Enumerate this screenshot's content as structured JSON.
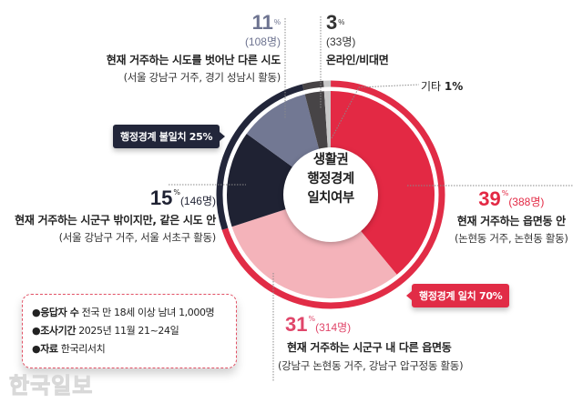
{
  "chart_data": {
    "type": "pie",
    "subtype": "donut",
    "title": "생활권 행정경계 일치여부",
    "center_label_lines": [
      "생활권",
      "행정경계",
      "일치여부"
    ],
    "categories": [
      "현재 거주하는 읍면동 안",
      "현재 거주하는 시군구 내 다른 읍면동",
      "현재 거주하는 시군구 밖이지만, 같은 시도 안",
      "현재 거주하는 시도를 벗어난 다른 시도",
      "온라인/비대면",
      "기타"
    ],
    "values": [
      39,
      31,
      15,
      11,
      3,
      1
    ],
    "counts": [
      388,
      314,
      146,
      108,
      33,
      null
    ],
    "colors": [
      "#e32944",
      "#f4b3ba",
      "#1f2233",
      "#727893",
      "#474446",
      "#c8c8c8"
    ],
    "groups": [
      {
        "name": "행정경계 일치",
        "value": 70,
        "members": [
          0,
          1
        ],
        "color": "#e12c46"
      },
      {
        "name": "행정경계 불일치",
        "value": 25,
        "members": [
          2,
          3
        ],
        "color": "#22263a"
      }
    ],
    "unit": "%"
  },
  "labels": {
    "s39": {
      "pct": "39",
      "unit": "%",
      "count": "(388명)",
      "title": "현재 거주하는 읍면동 안",
      "sub": "(논현동 거주, 논현동 활동)"
    },
    "s31": {
      "pct": "31",
      "unit": "%",
      "count": "(314명)",
      "title": "현재 거주하는 시군구 내 다른 읍면동",
      "sub": "(강남구 논현동 거주, 강남구 압구정동 활동)"
    },
    "s15": {
      "pct": "15",
      "unit": "%",
      "count": "(146명)",
      "title": "현재 거주하는 시군구 밖이지만, 같은 시도 안",
      "sub": "(서울 강남구 거주, 서울 서초구 활동)"
    },
    "s11": {
      "pct": "11",
      "unit": "%",
      "count": "(108명)",
      "title": "현재 거주하는 시도를 벗어난 다른 시도",
      "sub": "(서울 강남구 거주, 경기 성남시 활동)"
    },
    "s3": {
      "pct": "3",
      "unit": "%",
      "count": "(33명)",
      "title": "온라인/비대면"
    },
    "etc": {
      "label": "기타",
      "value": "1%"
    }
  },
  "tags": {
    "mismatch": "행정경계 불일치 25%",
    "match": "행정경계 일치 70%"
  },
  "info": {
    "respondents_label": "●응답자 수",
    "respondents_value": "전국 만 18세 이상 남녀 1,000명",
    "period_label": "●조사기간",
    "period_value": "2025년 11월 21~24일",
    "source_label": "●자료",
    "source_value": "한국리서치"
  },
  "watermark": "한국일보"
}
